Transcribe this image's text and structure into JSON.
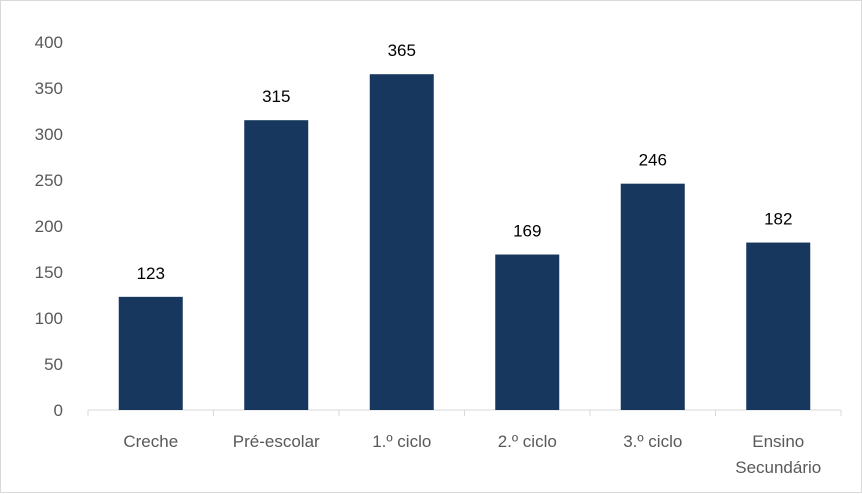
{
  "chart_data": {
    "type": "bar",
    "categories": [
      "Creche",
      "Pré-escolar",
      "1.º ciclo",
      "2.º ciclo",
      "3.º ciclo",
      "Ensino Secundário"
    ],
    "category_lines": [
      [
        "Creche"
      ],
      [
        "Pré-escolar"
      ],
      [
        "1.º ciclo"
      ],
      [
        "2.º ciclo"
      ],
      [
        "3.º ciclo"
      ],
      [
        "Ensino",
        "Secundário"
      ]
    ],
    "values": [
      123,
      315,
      365,
      169,
      246,
      182
    ],
    "title": "",
    "xlabel": "",
    "ylabel": "",
    "ylim": [
      0,
      400
    ],
    "yticks": [
      0,
      50,
      100,
      150,
      200,
      250,
      300,
      350,
      400
    ],
    "grid": false,
    "legend": "none",
    "bar_color": "#17375e",
    "axis_color": "#d9d9d9"
  }
}
